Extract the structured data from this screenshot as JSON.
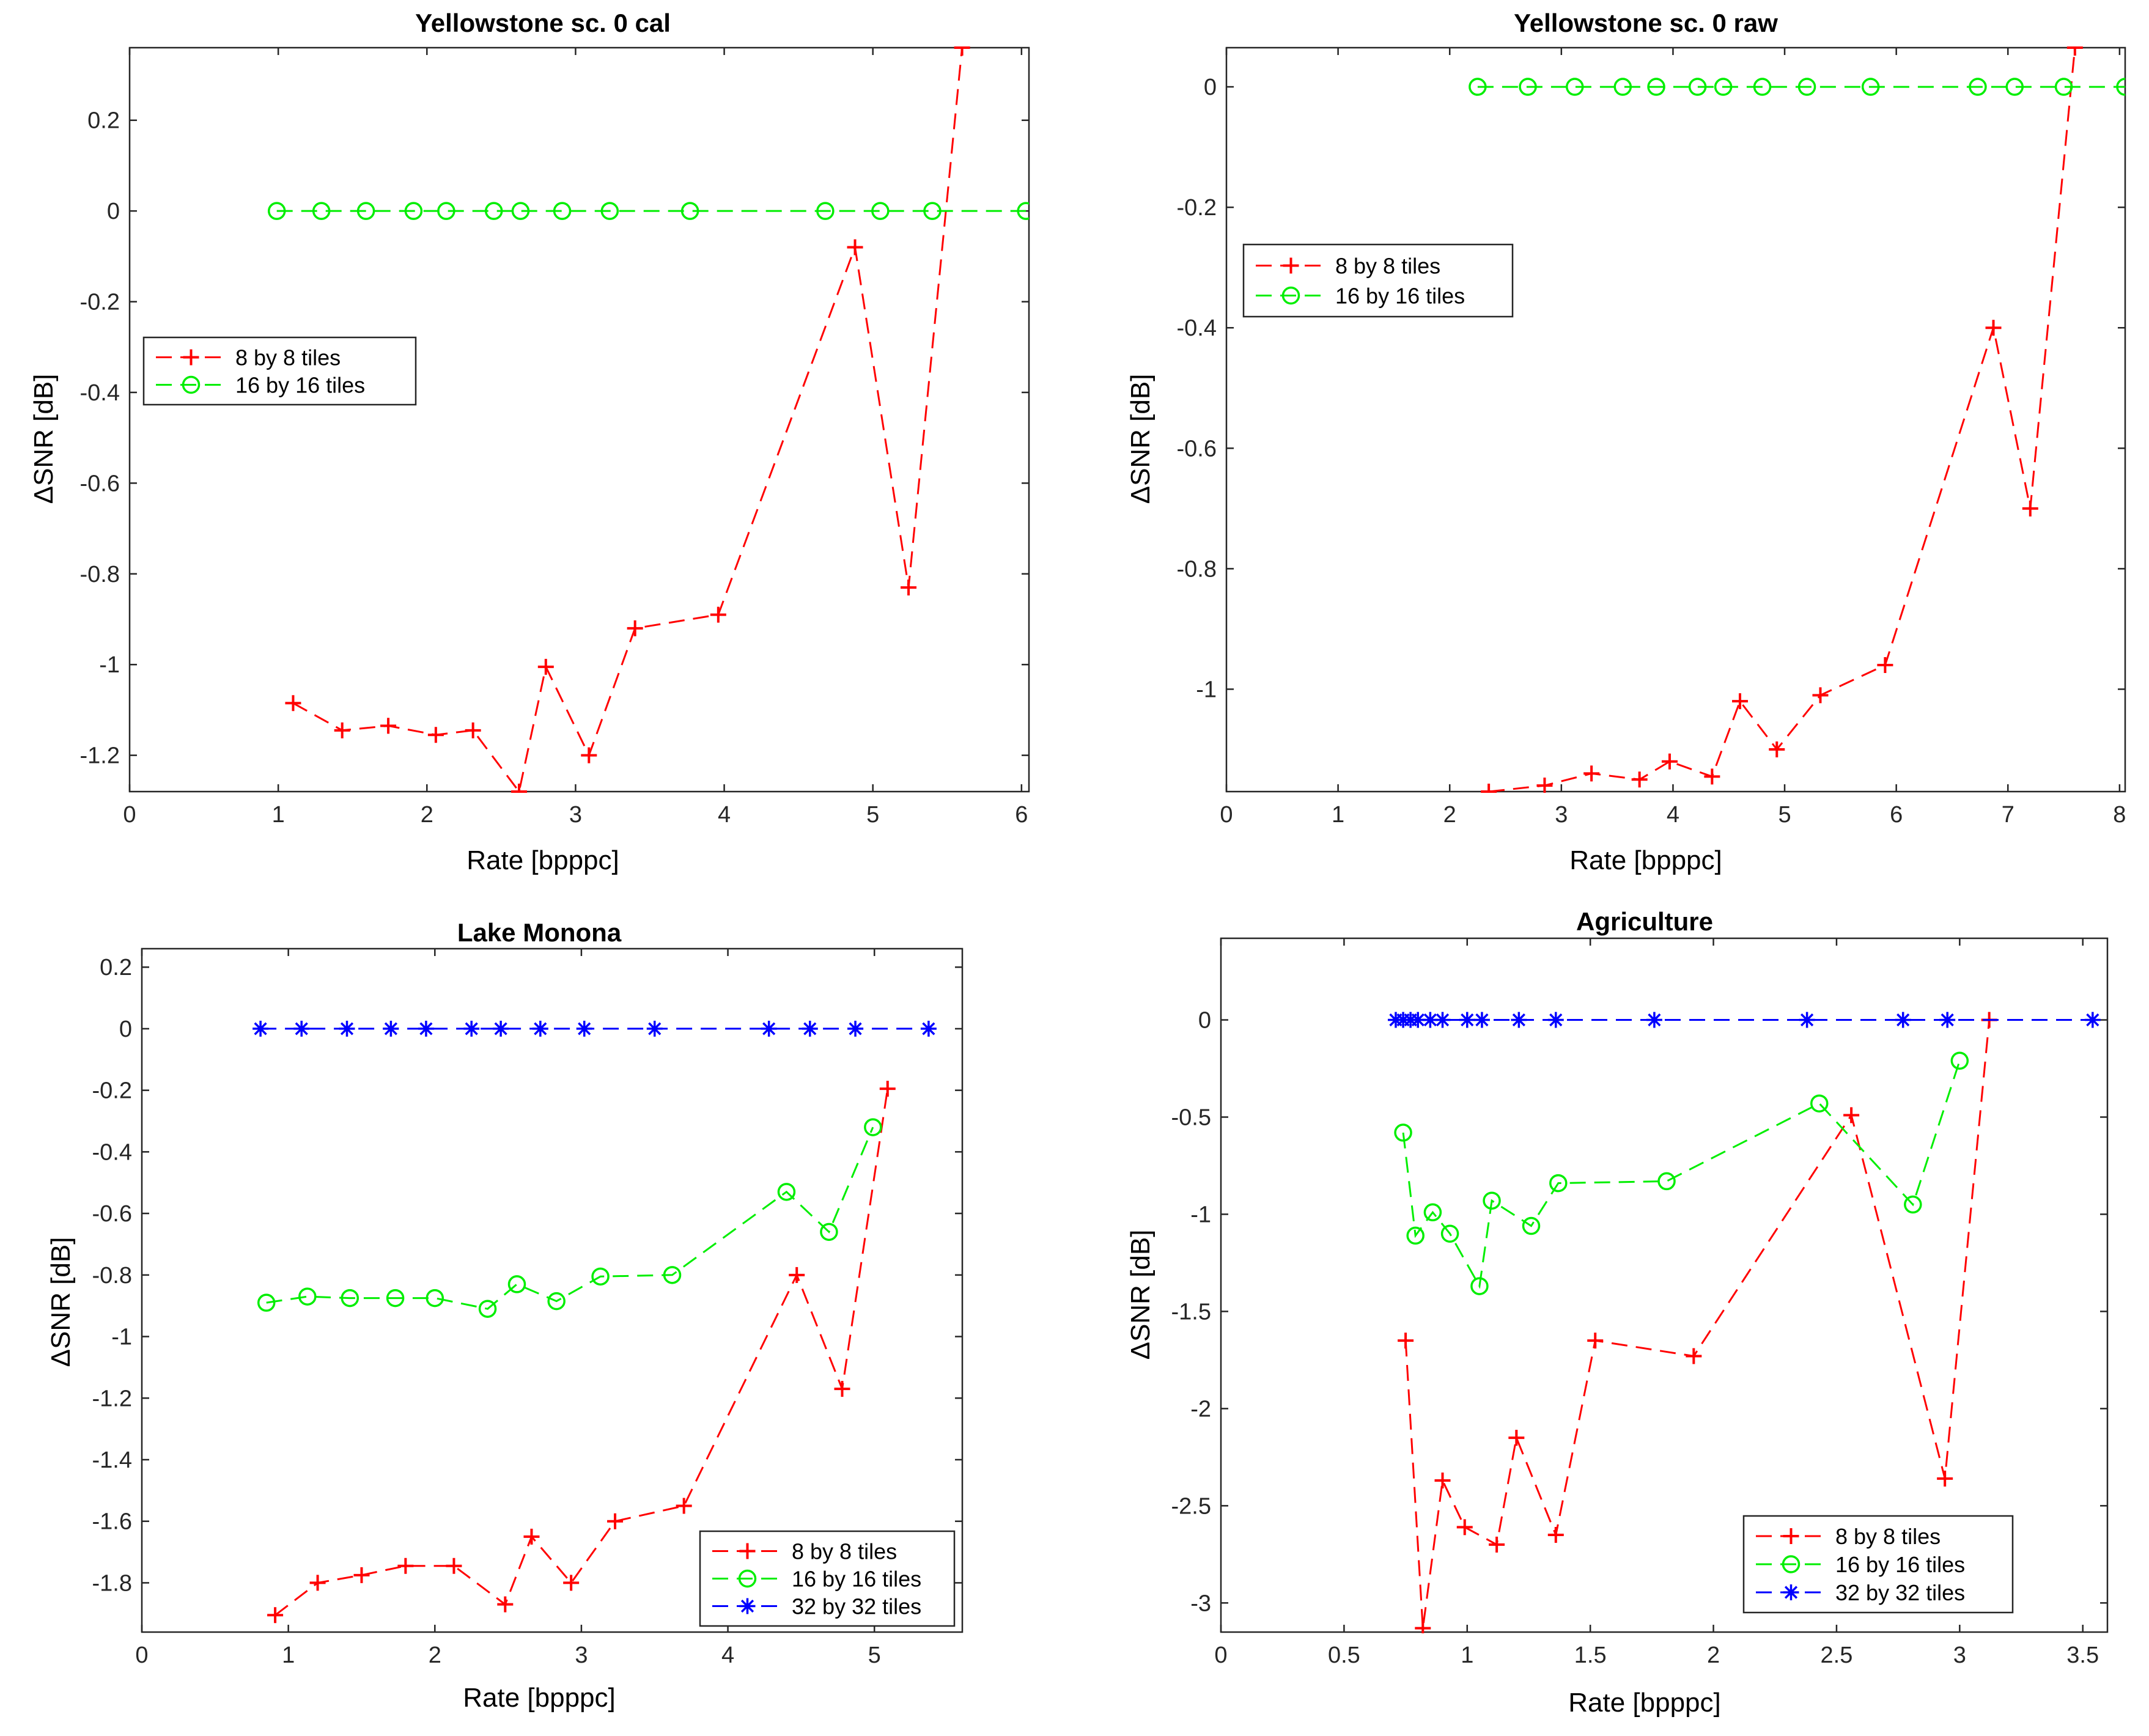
{
  "chart_data": [
    {
      "type": "line",
      "title": "Yellowstone sc. 0 cal",
      "xlabel": "Rate [bpppc]",
      "ylabel": "ΔSNR [dB]",
      "xlim": [
        0,
        6.05
      ],
      "ylim": [
        -1.28,
        0.36
      ],
      "xticks": [
        0,
        1,
        2,
        3,
        4,
        5,
        6
      ],
      "yticks": [
        0.2,
        0,
        -0.2,
        -0.4,
        -0.6,
        -0.8,
        -1,
        -1.2
      ],
      "legend_position": "middle-left",
      "series": [
        {
          "name": "8 by 8 tiles",
          "color": "#ff0000",
          "marker": "plus",
          "x": [
            1.1,
            1.43,
            1.74,
            2.06,
            2.31,
            2.62,
            2.8,
            3.09,
            3.4,
            3.96,
            4.88,
            5.24,
            5.6
          ],
          "y": [
            -1.085,
            -1.145,
            -1.135,
            -1.155,
            -1.145,
            -1.28,
            -1.005,
            -1.2,
            -0.92,
            -0.89,
            -0.08,
            -0.83,
            0.36
          ]
        },
        {
          "name": "16 by 16 tiles",
          "color": "#00ee00",
          "marker": "circle",
          "x": [
            0.99,
            1.29,
            1.59,
            1.91,
            2.13,
            2.45,
            2.63,
            2.91,
            3.23,
            3.77,
            4.68,
            5.05,
            5.4,
            6.03
          ],
          "y": [
            0,
            0,
            0,
            0,
            0,
            0,
            0,
            0,
            0,
            0,
            0,
            0,
            0,
            0
          ]
        }
      ]
    },
    {
      "type": "line",
      "title": "Yellowstone sc. 0 raw",
      "xlabel": "Rate [bpppc]",
      "ylabel": "ΔSNR [dB]",
      "xlim": [
        0,
        8.05
      ],
      "ylim": [
        -1.17,
        0.065
      ],
      "xticks": [
        0,
        1,
        2,
        3,
        4,
        5,
        6,
        7,
        8
      ],
      "yticks": [
        0,
        -0.2,
        -0.4,
        -0.6,
        -0.8,
        -1
      ],
      "legend_position": "upper-left",
      "series": [
        {
          "name": "8 by 8 tiles",
          "color": "#ff0000",
          "marker": "plus",
          "x": [
            2.35,
            2.85,
            3.27,
            3.7,
            3.97,
            4.35,
            4.6,
            4.93,
            5.32,
            5.9,
            6.87,
            7.2,
            7.6
          ],
          "y": [
            -1.17,
            -1.16,
            -1.14,
            -1.15,
            -1.12,
            -1.145,
            -1.02,
            -1.1,
            -1.01,
            -0.96,
            -0.4,
            -0.7,
            0.065
          ]
        },
        {
          "name": "16 by 16 tiles",
          "color": "#00ee00",
          "marker": "circle",
          "x": [
            2.25,
            2.7,
            3.12,
            3.55,
            3.85,
            4.22,
            4.45,
            4.8,
            5.2,
            5.77,
            6.73,
            7.06,
            7.5,
            8.05
          ],
          "y": [
            0,
            0,
            0,
            0,
            0,
            0,
            0,
            0,
            0,
            0,
            0,
            0,
            0,
            0
          ]
        }
      ]
    },
    {
      "type": "line",
      "title": "Lake Monona",
      "xlabel": "Rate [bpppc]",
      "ylabel": "ΔSNR [dB]",
      "xlim": [
        0,
        5.6
      ],
      "ylim": [
        -1.96,
        0.26
      ],
      "xticks": [
        0,
        1,
        2,
        3,
        4,
        5
      ],
      "yticks": [
        0.2,
        0,
        -0.2,
        -0.4,
        -0.6,
        -0.8,
        -1,
        -1.2,
        -1.4,
        -1.6,
        -1.8
      ],
      "legend_position": "lower-right",
      "series": [
        {
          "name": "8 by 8 tiles",
          "color": "#ff0000",
          "marker": "plus",
          "x": [
            0.91,
            1.2,
            1.5,
            1.8,
            2.13,
            2.48,
            2.66,
            2.93,
            3.23,
            3.7,
            4.47,
            4.78,
            5.09
          ],
          "y": [
            -1.905,
            -1.8,
            -1.775,
            -1.745,
            -1.745,
            -1.87,
            -1.65,
            -1.8,
            -1.6,
            -1.55,
            -0.8,
            -1.17,
            -0.195
          ]
        },
        {
          "name": "16 by 16 tiles",
          "color": "#00ee00",
          "marker": "circle",
          "x": [
            0.85,
            1.13,
            1.42,
            1.73,
            2.0,
            2.36,
            2.56,
            2.83,
            3.13,
            3.62,
            4.4,
            4.69,
            4.99
          ],
          "y": [
            -0.89,
            -0.87,
            -0.875,
            -0.875,
            -0.875,
            -0.91,
            -0.83,
            -0.885,
            -0.805,
            -0.8,
            -0.53,
            -0.66,
            -0.32
          ]
        },
        {
          "name": "32 by 32 tiles",
          "color": "#0000ff",
          "marker": "asterisk",
          "x": [
            0.81,
            1.09,
            1.4,
            1.7,
            1.94,
            2.25,
            2.45,
            2.72,
            3.02,
            3.5,
            4.28,
            4.56,
            4.87,
            5.37
          ],
          "y": [
            0,
            0,
            0,
            0,
            0,
            0,
            0,
            0,
            0,
            0,
            0,
            0,
            0,
            0
          ]
        }
      ]
    },
    {
      "type": "line",
      "title": "Agriculture",
      "xlabel": "Rate [bpppc]",
      "ylabel": "ΔSNR [dB]",
      "xlim": [
        0,
        3.6
      ],
      "ylim": [
        -3.15,
        0.42
      ],
      "xticks": [
        0,
        0.5,
        1,
        1.5,
        2,
        2.5,
        3,
        3.5
      ],
      "yticks": [
        0,
        -0.5,
        -1,
        -1.5,
        -2,
        -2.5,
        -3
      ],
      "legend_position": "lower-right",
      "series": [
        {
          "name": "8 by 8 tiles",
          "color": "#ff0000",
          "marker": "plus",
          "x": [
            0.75,
            0.82,
            0.9,
            0.99,
            1.12,
            1.2,
            1.36,
            1.52,
            1.92,
            2.56,
            2.94,
            3.12
          ],
          "y": [
            -1.65,
            -3.13,
            -2.37,
            -2.61,
            -2.7,
            -2.15,
            -2.65,
            -1.65,
            -1.73,
            -0.49,
            -2.36,
            0
          ]
        },
        {
          "name": "16 by 16 tiles",
          "color": "#00ee00",
          "marker": "circle",
          "x": [
            0.74,
            0.79,
            0.86,
            0.93,
            1.05,
            1.1,
            1.26,
            1.37,
            1.81,
            2.43,
            2.81,
            3.0
          ],
          "y": [
            -0.58,
            -1.11,
            -0.99,
            -1.1,
            -1.37,
            -0.93,
            -1.06,
            -0.84,
            -0.83,
            -0.43,
            -0.95,
            -0.21
          ]
        },
        {
          "name": "32 by 32 tiles",
          "color": "#0000ff",
          "marker": "asterisk",
          "x": [
            0.71,
            0.74,
            0.77,
            0.8,
            0.85,
            0.9,
            1.0,
            1.06,
            1.21,
            1.36,
            1.76,
            2.38,
            2.77,
            2.95,
            3.54
          ],
          "y": [
            0,
            0,
            0,
            0,
            0,
            0,
            0,
            0,
            0,
            0,
            0,
            0,
            0,
            0,
            0
          ]
        }
      ]
    }
  ]
}
